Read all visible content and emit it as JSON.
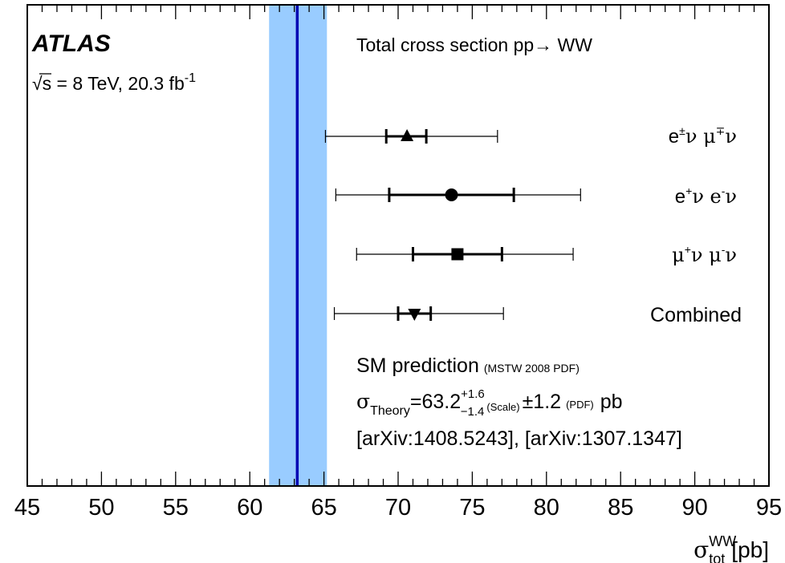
{
  "chart_data": {
    "type": "scatter",
    "experiment": "ATLAS",
    "energy_label": "√s = 8 TeV, 20.3 fb",
    "energy_label_sup": "-1",
    "title": "Total cross section pp→ WW",
    "xlabel": "σ",
    "xlabel_sup": "WW",
    "xlabel_sub": "tot",
    "xlabel_unit": "[pb]",
    "xlim": [
      45,
      95
    ],
    "xticks": [
      45,
      50,
      55,
      60,
      65,
      70,
      75,
      80,
      85,
      90,
      95
    ],
    "grid": false,
    "theory": {
      "central": 63.2,
      "band": [
        61.3,
        65.2
      ],
      "label_title": "SM prediction",
      "label_pdf": "(MSTW 2008 PDF)",
      "sigma_symbol": "σ",
      "sigma_sub": "Theory",
      "value_text": "=63.2",
      "scale_up": "+1.6",
      "scale_down": "−1.4",
      "scale_tag": "(Scale)",
      "pdf_unc": "±1.2",
      "pdf_tag": "(PDF)",
      "unit": "pb",
      "refs": "[arXiv:1408.5243], [arXiv:1307.1347]",
      "band_color": "#99ccff",
      "line_color": "#0000b3"
    },
    "series": [
      {
        "name": "e±ν μ∓ν",
        "marker": "triangle-up",
        "value": 70.6,
        "stat": [
          69.2,
          71.9
        ],
        "total": [
          65.1,
          76.7
        ]
      },
      {
        "name": "e+ν e-ν",
        "marker": "circle",
        "value": 73.6,
        "stat": [
          69.4,
          77.8
        ],
        "total": [
          65.8,
          82.3
        ]
      },
      {
        "name": "μ+ν μ-ν",
        "marker": "square",
        "value": 74.0,
        "stat": [
          71.0,
          77.0
        ],
        "total": [
          67.2,
          81.8
        ]
      },
      {
        "name": "Combined",
        "marker": "triangle-down",
        "value": 71.1,
        "stat": [
          70.0,
          72.2
        ],
        "total": [
          65.7,
          77.1
        ]
      }
    ]
  }
}
